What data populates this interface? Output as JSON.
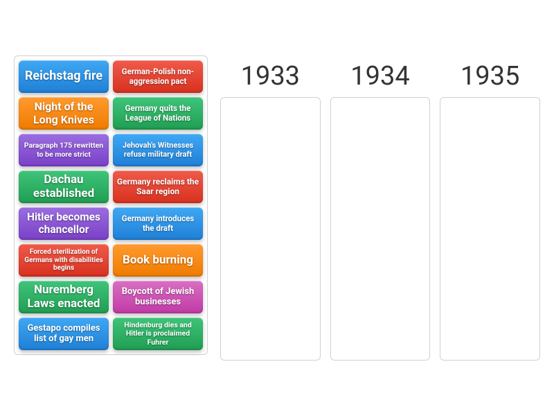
{
  "colors": {
    "blue": {
      "top": "#3fa8f4",
      "bottom": "#1f7fd6"
    },
    "red": {
      "top": "#f05a4a",
      "bottom": "#d8311f"
    },
    "orange": {
      "top": "#ff9a2e",
      "bottom": "#f07b00"
    },
    "green": {
      "top": "#3fc47a",
      "bottom": "#1f9e52"
    },
    "purple": {
      "top": "#9a6de0",
      "bottom": "#7a40c7"
    },
    "pink": {
      "top": "#d96fc2",
      "bottom": "#c03aa6"
    }
  },
  "tiles": [
    {
      "label": "Reichstag fire",
      "color": "blue",
      "fontSize": 18
    },
    {
      "label": "German-Polish non-aggression pact",
      "color": "red",
      "fontSize": 11.5
    },
    {
      "label": "Night of the Long Knives",
      "color": "orange",
      "fontSize": 16
    },
    {
      "label": "Germany quits the League of Nations",
      "color": "green",
      "fontSize": 11.5
    },
    {
      "label": "Paragraph 175 rewritten to be more strict",
      "color": "purple",
      "fontSize": 10.5
    },
    {
      "label": "Jehovah's Witnesses refuse military draft",
      "color": "blue",
      "fontSize": 11
    },
    {
      "label": "Dachau established",
      "color": "green",
      "fontSize": 17
    },
    {
      "label": "Germany reclaims the Saar region",
      "color": "red",
      "fontSize": 12
    },
    {
      "label": "Hitler becomes chancellor",
      "color": "purple",
      "fontSize": 15.5
    },
    {
      "label": "Germany introduces the draft",
      "color": "blue",
      "fontSize": 11.5
    },
    {
      "label": "Forced sterilization of Germans with disabilities begins",
      "color": "red",
      "fontSize": 10
    },
    {
      "label": "Book burning",
      "color": "orange",
      "fontSize": 17
    },
    {
      "label": "Nuremberg Laws enacted",
      "color": "green",
      "fontSize": 17
    },
    {
      "label": "Boycott of Jewish businesses",
      "color": "pink",
      "fontSize": 13
    },
    {
      "label": "Gestapo compiles list of gay men",
      "color": "blue",
      "fontSize": 13
    },
    {
      "label": "Hindenburg dies and Hitler is proclaimed Fuhrer",
      "color": "green",
      "fontSize": 10.5
    }
  ],
  "dropColumns": [
    {
      "label": "1933"
    },
    {
      "label": "1934"
    },
    {
      "label": "1935"
    }
  ]
}
